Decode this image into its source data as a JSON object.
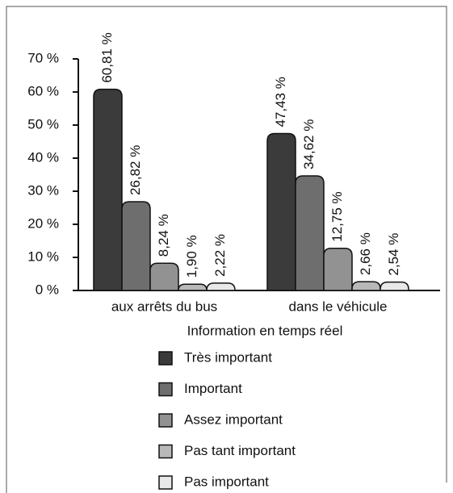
{
  "chart_data": {
    "type": "bar",
    "categories": [
      "aux arrêts du bus",
      "dans le véhicule"
    ],
    "legend_title": "Information en temps réel",
    "series": [
      {
        "name": "Très important",
        "color": "#3b3b3b",
        "values": [
          60.81,
          47.43
        ],
        "value_labels": [
          "60,81 %",
          "47,43 %"
        ]
      },
      {
        "name": "Important",
        "color": "#6e6e6e",
        "values": [
          26.82,
          34.62
        ],
        "value_labels": [
          "26,82 %",
          "34,62 %"
        ]
      },
      {
        "name": "Assez important",
        "color": "#929292",
        "values": [
          8.24,
          12.75
        ],
        "value_labels": [
          "8,24 %",
          "12,75 %"
        ]
      },
      {
        "name": "Pas tant important",
        "color": "#b8b8b8",
        "values": [
          1.9,
          2.66
        ],
        "value_labels": [
          "1,90 %",
          "2,66 %"
        ]
      },
      {
        "name": "Pas important",
        "color": "#e8e8e8",
        "values": [
          2.22,
          2.54
        ],
        "value_labels": [
          "2,22 %",
          "2,54 %"
        ]
      }
    ],
    "ylim": [
      0,
      70
    ],
    "yticks": [
      {
        "value": 0,
        "label": "0 %"
      },
      {
        "value": 10,
        "label": "10 %"
      },
      {
        "value": 20,
        "label": "20 %"
      },
      {
        "value": 30,
        "label": "30 %"
      },
      {
        "value": 40,
        "label": "40 %"
      },
      {
        "value": 50,
        "label": "50 %"
      },
      {
        "value": 60,
        "label": "60 %"
      },
      {
        "value": 70,
        "label": "70 %"
      }
    ],
    "legend": "bottom"
  }
}
